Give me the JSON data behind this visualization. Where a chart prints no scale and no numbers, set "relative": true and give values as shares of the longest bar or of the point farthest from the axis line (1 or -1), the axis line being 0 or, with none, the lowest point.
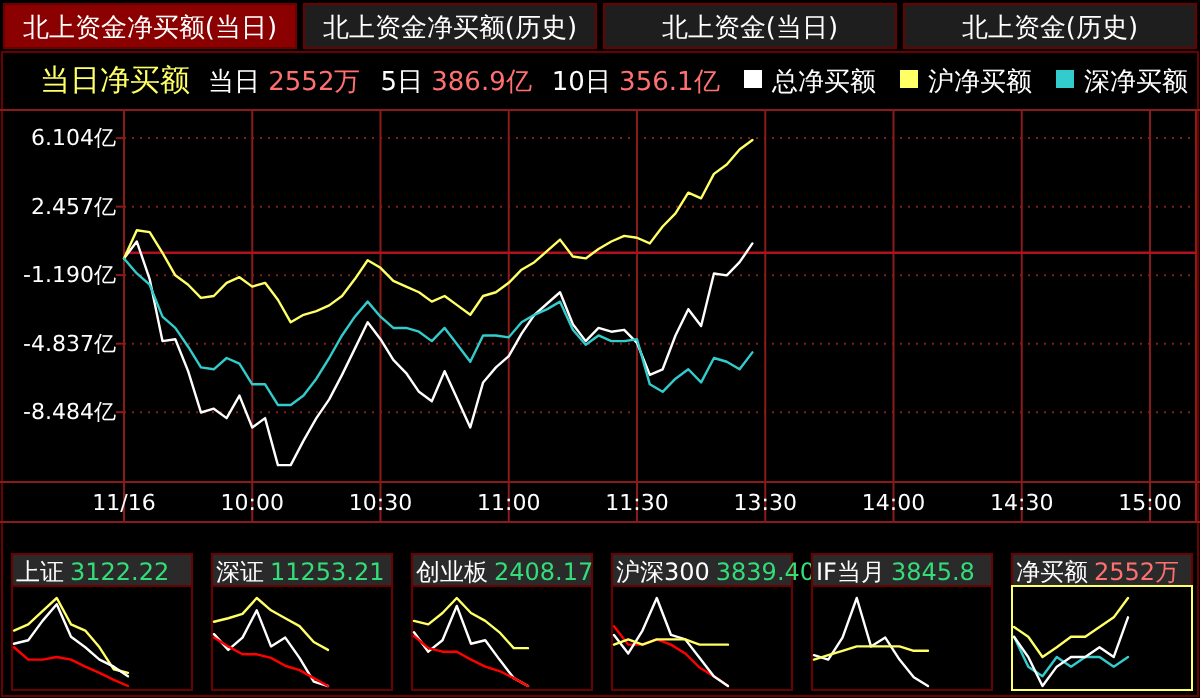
{
  "chart_data": [
    {
      "type": "line",
      "title": "当日净买额",
      "annotations": [
        "北上资金净买额(当日)",
        "北上资金净买额(历史)",
        "北上资金(当日)",
        "北上资金(历史)",
        "当日 2552万",
        "5日 386.9亿",
        "10日 356.1亿"
      ],
      "categories": [
        "11/16",
        null,
        null,
        null,
        null,
        null,
        null,
        null,
        null,
        null,
        "10:00",
        null,
        null,
        null,
        null,
        null,
        null,
        null,
        null,
        null,
        "10:30",
        null,
        null,
        null,
        null,
        null,
        null,
        null,
        null,
        null,
        "11:00",
        null,
        null,
        null,
        null,
        null,
        null,
        null,
        null,
        null,
        "11:30",
        null,
        null,
        null,
        null,
        null,
        null,
        null,
        null,
        null,
        "13:30",
        null,
        null,
        null,
        null,
        null,
        null,
        null,
        null,
        null,
        "14:00",
        null,
        null,
        null,
        null,
        null,
        null,
        null,
        null,
        null,
        "14:30",
        null,
        null,
        null,
        null,
        null,
        null,
        null,
        null,
        null,
        "15:00"
      ],
      "ylim": [
        -12.2,
        7.6
      ],
      "yticks": [
        {
          "value": 6.104,
          "label": "6.104亿"
        },
        {
          "value": 2.457,
          "label": "2.457亿"
        },
        {
          "value": -1.19,
          "label": "-1.190亿"
        },
        {
          "value": -4.837,
          "label": "-4.837亿"
        },
        {
          "value": -8.484,
          "label": "-8.484亿"
        }
      ],
      "grid": true,
      "legend": "top right",
      "ref_lines": [
        {
          "axis": "y",
          "value": 0,
          "color": "#b01020"
        }
      ],
      "series": [
        {
          "name": "总净买额",
          "color": "#ffffff",
          "values": [
            -0.3,
            0.6,
            -1.4,
            -4.7,
            -4.6,
            -6.3,
            -8.5,
            -8.3,
            -8.8,
            -7.6,
            -9.3,
            -8.8,
            -11.3,
            -11.3,
            -10.0,
            -8.8,
            -7.8,
            -6.5,
            -5.1,
            -3.7,
            -4.6,
            -5.7,
            -6.4,
            -7.4,
            -7.9,
            -6.3,
            -7.8,
            -9.3,
            -6.9,
            -6.1,
            -5.5,
            -4.3,
            -3.3,
            -2.7,
            -2.1,
            -3.8,
            -4.7,
            -4.0,
            -4.2,
            -4.1,
            -4.8,
            -6.5,
            -6.2,
            -4.4,
            -3.0,
            -3.9,
            -1.1,
            -1.2,
            -0.5,
            0.5,
            null,
            null,
            null,
            null,
            null,
            null,
            null,
            null,
            null,
            null,
            null,
            null,
            null,
            null,
            null,
            null,
            null,
            null,
            null,
            null,
            null,
            null,
            null,
            null,
            null,
            null,
            null,
            null,
            null,
            null,
            null
          ]
        },
        {
          "name": "沪净买额",
          "color": "#ffff66",
          "values": [
            -0.3,
            1.2,
            1.1,
            0.0,
            -1.2,
            -1.7,
            -2.4,
            -2.3,
            -1.6,
            -1.3,
            -1.8,
            -1.6,
            -2.5,
            -3.7,
            -3.3,
            -3.1,
            -2.8,
            -2.3,
            -1.4,
            -0.4,
            -0.8,
            -1.5,
            -1.8,
            -2.1,
            -2.6,
            -2.3,
            -2.8,
            -3.3,
            -2.3,
            -2.1,
            -1.6,
            -0.9,
            -0.5,
            0.1,
            0.7,
            -0.2,
            -0.3,
            0.2,
            0.6,
            0.9,
            0.8,
            0.5,
            1.4,
            2.1,
            3.2,
            2.9,
            4.2,
            4.7,
            5.5,
            6.0,
            null,
            null,
            null,
            null,
            null,
            null,
            null,
            null,
            null,
            null,
            null,
            null,
            null,
            null,
            null,
            null,
            null,
            null,
            null,
            null,
            null,
            null,
            null,
            null,
            null,
            null,
            null,
            null,
            null,
            null,
            null
          ]
        },
        {
          "name": "深净买额",
          "color": "#33cccc",
          "values": [
            -0.3,
            -1.1,
            -1.7,
            -3.4,
            -4.0,
            -5.0,
            -6.1,
            -6.2,
            -5.6,
            -5.9,
            -7.0,
            -7.0,
            -8.1,
            -8.1,
            -7.6,
            -6.7,
            -5.6,
            -4.4,
            -3.4,
            -2.6,
            -3.4,
            -4.0,
            -4.0,
            -4.2,
            -4.7,
            -4.0,
            -4.9,
            -5.8,
            -4.4,
            -4.4,
            -4.5,
            -3.7,
            -3.3,
            -3.0,
            -2.6,
            -4.1,
            -4.9,
            -4.4,
            -4.7,
            -4.7,
            -4.6,
            -7.0,
            -7.4,
            -6.7,
            -6.2,
            -6.9,
            -5.6,
            -5.8,
            -6.2,
            -5.3,
            null,
            null,
            null,
            null,
            null,
            null,
            null,
            null,
            null,
            null,
            null,
            null,
            null,
            null,
            null,
            null,
            null,
            null,
            null,
            null,
            null,
            null,
            null,
            null,
            null,
            null,
            null,
            null,
            null,
            null,
            null
          ]
        }
      ]
    },
    {
      "type": "line",
      "title": "上证",
      "subtitle": "3122.22",
      "relative": true,
      "categories": [
        null,
        null,
        null,
        null,
        null,
        null,
        null,
        null,
        null
      ],
      "series": [
        {
          "color": "#ffff66",
          "values": [
            0.63,
            0.7,
            0.85,
            1,
            0.7,
            0.63,
            0.44,
            0.19,
            0.15
          ]
        },
        {
          "color": "#ffffff",
          "values": [
            0.48,
            0.52,
            0.74,
            0.93,
            0.56,
            0.44,
            0.3,
            0.22,
            0.11
          ]
        },
        {
          "color": "#ff0000",
          "values": [
            0.44,
            0.3,
            0.3,
            0.33,
            0.3,
            0.22,
            0.15,
            0.07,
            0
          ]
        }
      ]
    },
    {
      "type": "line",
      "title": "深证",
      "subtitle": "11253.21",
      "relative": true,
      "categories": [
        null,
        null,
        null,
        null,
        null,
        null,
        null,
        null,
        null
      ],
      "series": [
        {
          "color": "#ffff66",
          "values": [
            0.73,
            0.77,
            0.82,
            1,
            0.86,
            0.77,
            0.68,
            0.5,
            0.41
          ]
        },
        {
          "color": "#ffffff",
          "values": [
            0.59,
            0.41,
            0.55,
            0.86,
            0.45,
            0.55,
            0.32,
            0.05,
            0
          ]
        },
        {
          "color": "#ff0000",
          "values": [
            0.55,
            0.45,
            0.36,
            0.36,
            0.32,
            0.23,
            0.18,
            0.09,
            0
          ]
        }
      ]
    },
    {
      "type": "line",
      "title": "创业板",
      "subtitle": "2408.17",
      "relative": true,
      "categories": [
        null,
        null,
        null,
        null,
        null,
        null,
        null,
        null,
        null
      ],
      "series": [
        {
          "color": "#ffff66",
          "values": [
            0.74,
            0.7,
            0.83,
            1,
            0.83,
            0.74,
            0.61,
            0.43,
            0.43
          ]
        },
        {
          "color": "#ffffff",
          "values": [
            0.61,
            0.39,
            0.52,
            0.91,
            0.48,
            0.52,
            0.3,
            0.09,
            0
          ]
        },
        {
          "color": "#ff0000",
          "values": [
            0.57,
            0.43,
            0.39,
            0.39,
            0.3,
            0.22,
            0.17,
            0.09,
            0
          ]
        }
      ]
    },
    {
      "type": "line",
      "title": "沪深300",
      "subtitle": "3839.40",
      "relative": true,
      "categories": [
        null,
        null,
        null,
        null,
        null,
        null,
        null,
        null,
        null
      ],
      "series": [
        {
          "color": "#ff0000",
          "values": [
            0.68,
            0.47,
            0.47,
            0.53,
            0.47,
            0.37,
            0.21,
            0.11,
            0
          ]
        },
        {
          "color": "#ffffff",
          "values": [
            0.58,
            0.37,
            0.63,
            1,
            0.58,
            0.53,
            0.32,
            0.11,
            0
          ]
        },
        {
          "color": "#ffff66",
          "values": [
            0.47,
            0.53,
            0.47,
            0.53,
            0.53,
            0.53,
            0.47,
            0.47,
            0.47
          ]
        }
      ]
    },
    {
      "type": "line",
      "title": "IF当月",
      "subtitle": "3845.8",
      "relative": true,
      "categories": [
        null,
        null,
        null,
        null,
        null,
        null,
        null,
        null,
        null
      ],
      "series": [
        {
          "color": "#ffffff",
          "values": [
            0.35,
            0.3,
            0.55,
            1,
            0.45,
            0.55,
            0.3,
            0.1,
            0
          ]
        },
        {
          "color": "#ffff66",
          "values": [
            0.3,
            0.35,
            0.4,
            0.45,
            0.45,
            0.45,
            0.45,
            0.4,
            0.4
          ]
        }
      ]
    },
    {
      "type": "line",
      "title": "净买额",
      "subtitle": "2552万",
      "relative": true,
      "categories": [
        null,
        null,
        null,
        null,
        null,
        null,
        null,
        null,
        null
      ],
      "series": [
        {
          "color": "#ffff66",
          "values": [
            0.67,
            0.56,
            0.33,
            0.44,
            0.56,
            0.56,
            0.67,
            0.78,
            1
          ]
        },
        {
          "color": "#33cccc",
          "values": [
            0.56,
            0.22,
            0.11,
            0.33,
            0.22,
            0.33,
            0.33,
            0.22,
            0.33
          ]
        },
        {
          "color": "#ffffff",
          "values": [
            0.56,
            0.33,
            0,
            0.22,
            0.33,
            0.33,
            0.44,
            0.33,
            0.78
          ]
        }
      ]
    }
  ]
}
